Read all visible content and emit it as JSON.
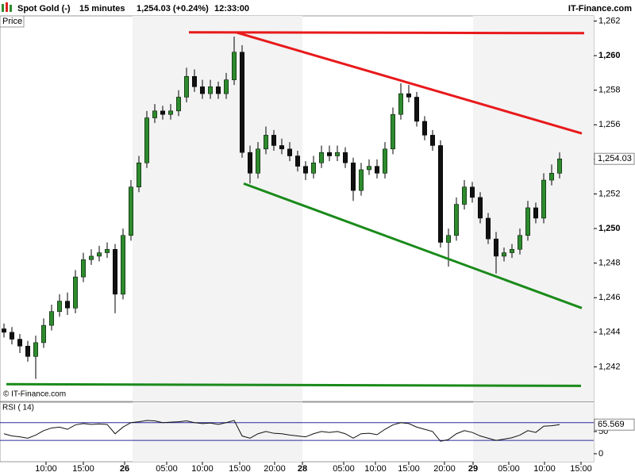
{
  "header": {
    "instrument": "Spot Gold (-)",
    "interval": "15 minutes",
    "quote": "1,254.03 (+0.24%)",
    "time": "12:33:00",
    "site": "IT-Finance.com",
    "copyright": "© IT-Finance.com"
  },
  "chart_data": [
    {
      "type": "candlestick",
      "label": "Price",
      "up_color": "#2e8b2e",
      "down_color": "#111111",
      "xlim": [
        -0.5,
        74.3
      ],
      "ylim": [
        1240,
        1262.3
      ],
      "yticks": [
        {
          "value": 1242,
          "label": "1,242"
        },
        {
          "value": 1244,
          "label": "1,244"
        },
        {
          "value": 1246,
          "label": "1,246"
        },
        {
          "value": 1248,
          "label": "1,248"
        },
        {
          "value": 1250,
          "label": "1,250"
        },
        {
          "value": 1252,
          "label": "1,252"
        },
        {
          "value": 1254,
          "label": "1,254"
        },
        {
          "value": 1256,
          "label": "1,256"
        },
        {
          "value": 1258,
          "label": "1,258"
        },
        {
          "value": 1260,
          "label": "1,260"
        },
        {
          "value": 1262,
          "label": "1,262"
        }
      ],
      "last_price": {
        "value": 1254.03,
        "label": "1,254.03"
      },
      "opens": [
        1244.2,
        1244,
        1243.6,
        1243.2,
        1242.6,
        1243.4,
        1244.4,
        1245.2,
        1245.8,
        1245.4,
        1247.2,
        1248.2,
        1248.4,
        1248.6,
        1248.8,
        1246.2,
        1249.6,
        1252.4,
        1253.8,
        1256.4,
        1256.8,
        1256.6,
        1256.8,
        1257.6,
        1258.8,
        1258.2,
        1257.8,
        1258.2,
        1257.8,
        1258.6,
        1260.2,
        1254.4,
        1253.2,
        1254.6,
        1255.4,
        1254.8,
        1254.6,
        1254.2,
        1253.6,
        1253.2,
        1253.8,
        1254.4,
        1254.2,
        1254.4,
        1253.8,
        1252.2,
        1253.4,
        1253.6,
        1253.2,
        1254.6,
        1256.6,
        1257.8,
        1257.6,
        1256.2,
        1255.4,
        1254.8,
        1249.2,
        1249.6,
        1251.4,
        1252.4,
        1251.8,
        1250.6,
        1249.4,
        1248.4,
        1248.6,
        1248.8,
        1249.6,
        1251.2,
        1250.6,
        1252.8,
        1253.2
      ],
      "highs": [
        1244.5,
        1244.3,
        1243.9,
        1243.5,
        1243.8,
        1244.8,
        1245.6,
        1246.2,
        1246.3,
        1247.6,
        1248.6,
        1248.8,
        1249,
        1249.2,
        1249.1,
        1250,
        1252.8,
        1254.2,
        1256.8,
        1257.2,
        1257.1,
        1257.2,
        1258,
        1259.3,
        1259.2,
        1258.6,
        1258.6,
        1258.5,
        1259,
        1261.1,
        1260.6,
        1254.8,
        1255,
        1255.9,
        1255.7,
        1255.2,
        1255,
        1254.5,
        1253.9,
        1254.2,
        1254.8,
        1254.8,
        1254.8,
        1254.7,
        1254.1,
        1253.8,
        1254,
        1254,
        1255,
        1257,
        1258.4,
        1258.3,
        1257.9,
        1256.5,
        1255.7,
        1255.1,
        1250,
        1251.8,
        1252.8,
        1252.7,
        1252.1,
        1250.9,
        1249.8,
        1248.9,
        1249.1,
        1250,
        1251.6,
        1251.5,
        1253.2,
        1253.7,
        1254.4
      ],
      "lows": [
        1243.7,
        1243.3,
        1242.8,
        1242.3,
        1241.3,
        1243.1,
        1244.1,
        1244.9,
        1245,
        1245.1,
        1246.9,
        1247.9,
        1248.1,
        1248.3,
        1245.1,
        1245.9,
        1249.3,
        1252.1,
        1253.5,
        1256.1,
        1256.3,
        1256.3,
        1256.5,
        1257.3,
        1257.9,
        1257.5,
        1257.5,
        1257.5,
        1257.5,
        1258.3,
        1254.1,
        1252.6,
        1252.9,
        1254.3,
        1254.5,
        1254.3,
        1253.9,
        1253.3,
        1252.8,
        1252.9,
        1253.5,
        1253.9,
        1253.9,
        1253.5,
        1251.6,
        1251.9,
        1253.1,
        1252.9,
        1252.9,
        1254.3,
        1256.3,
        1257.3,
        1255.9,
        1255.1,
        1254.5,
        1248.9,
        1247.8,
        1249.3,
        1251.1,
        1251.5,
        1250.3,
        1249.1,
        1247.4,
        1248.1,
        1248.3,
        1248.5,
        1249.3,
        1250.3,
        1250.3,
        1252.5,
        1252.9
      ],
      "closes": [
        1244,
        1243.6,
        1243.2,
        1242.6,
        1243.4,
        1244.4,
        1245.2,
        1245.8,
        1245.4,
        1247.2,
        1248.2,
        1248.4,
        1248.6,
        1248.8,
        1246.2,
        1249.6,
        1252.4,
        1253.8,
        1256.4,
        1256.8,
        1256.6,
        1256.8,
        1257.6,
        1258.8,
        1258.2,
        1257.8,
        1258.2,
        1257.8,
        1258.6,
        1260.2,
        1254.4,
        1253.2,
        1254.6,
        1255.4,
        1254.8,
        1254.6,
        1254.2,
        1253.6,
        1253.2,
        1253.8,
        1254.4,
        1254.2,
        1254.4,
        1253.8,
        1252.2,
        1253.4,
        1253.6,
        1253.2,
        1254.6,
        1256.6,
        1257.8,
        1257.6,
        1256.2,
        1255.4,
        1254.8,
        1249.2,
        1249.6,
        1251.4,
        1252.4,
        1251.8,
        1250.6,
        1249.4,
        1248.4,
        1248.6,
        1248.8,
        1249.6,
        1251.2,
        1250.6,
        1252.8,
        1253.2,
        1254.03
      ],
      "lines": [
        {
          "color": "#e8191b",
          "x": [
            23.3,
            73.1
          ],
          "y": [
            1261.35,
            1261.3
          ]
        },
        {
          "color": "#e8191b",
          "x": [
            29.2,
            72.8
          ],
          "y": [
            1261.35,
            1255.5
          ]
        },
        {
          "color": "#1a8a1a",
          "x": [
            30.2,
            72.8
          ],
          "y": [
            1252.6,
            1245.4
          ]
        },
        {
          "color": "#1a8a1a",
          "x": [
            0.3,
            72.7
          ],
          "y": [
            1241,
            1240.9
          ]
        }
      ]
    },
    {
      "type": "line",
      "label": "RSI ( 14)",
      "color": "#111111",
      "level_color": "#2b2b9c",
      "xlim": [
        -0.5,
        74.3
      ],
      "ylim": [
        -18,
        116
      ],
      "yticks": [
        0,
        50
      ],
      "levels": [
        30,
        70
      ],
      "last_value": {
        "value": 65.569,
        "label": "65.569"
      },
      "values": [
        45,
        40,
        38,
        35,
        42,
        52,
        58,
        60,
        55,
        65,
        68,
        66,
        67,
        66,
        45,
        60,
        70,
        72,
        75,
        74,
        70,
        71,
        72,
        74,
        70,
        68,
        69,
        66,
        70,
        75,
        40,
        35,
        45,
        50,
        46,
        45,
        42,
        40,
        38,
        45,
        50,
        48,
        50,
        45,
        35,
        45,
        46,
        43,
        55,
        65,
        70,
        68,
        60,
        55,
        50,
        28,
        32,
        45,
        52,
        48,
        40,
        35,
        30,
        33,
        36,
        42,
        52,
        48,
        62,
        63,
        65.569
      ],
      "xticks": [
        {
          "value": 5.3,
          "label": "10:00"
        },
        {
          "value": 10,
          "label": "15:00"
        },
        {
          "value": 15.2,
          "label": "26"
        },
        {
          "value": 20.5,
          "label": "05:00"
        },
        {
          "value": 25,
          "label": "10:00"
        },
        {
          "value": 29.7,
          "label": "15:00"
        },
        {
          "value": 34.1,
          "label": "20:00"
        },
        {
          "value": 37.6,
          "label": "28"
        },
        {
          "value": 42.8,
          "label": "05:00"
        },
        {
          "value": 46.8,
          "label": "10:00"
        },
        {
          "value": 51,
          "label": "15:00"
        },
        {
          "value": 55.5,
          "label": "20:00"
        },
        {
          "value": 59.1,
          "label": "29"
        },
        {
          "value": 63.6,
          "label": "05:00"
        },
        {
          "value": 68.1,
          "label": "10:00"
        },
        {
          "value": 72.7,
          "label": "15:00"
        }
      ]
    }
  ]
}
